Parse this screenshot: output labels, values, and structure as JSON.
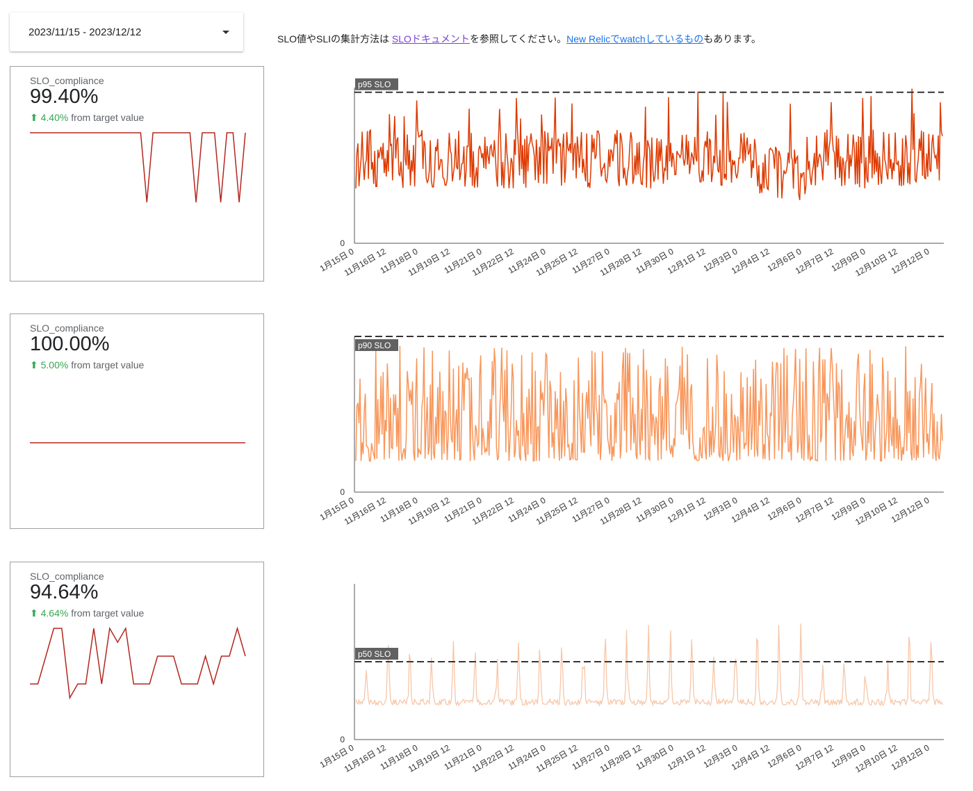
{
  "date_range": {
    "label": "2023/11/15 - 2023/12/12"
  },
  "notice": {
    "prefix": "SLO値やSLIの集計方法は ",
    "link1": "SLOドキュメント",
    "middle": "を参照してください。",
    "link2": "New Relicでwatchしているもの",
    "suffix": "もあります。"
  },
  "colors": {
    "p95": "#dd3a00",
    "p90": "#f8965a",
    "p50": "#f7c6a8",
    "spark": "#b3261e",
    "up": "#34a853"
  },
  "scorecards": [
    {
      "label": "SLO_compliance",
      "value": "99.40%",
      "arrow": "⬆",
      "delta_value": "4.40%",
      "delta_text": " from target value",
      "sparkline": [
        99.9,
        99.9,
        99.9,
        99.9,
        99.9,
        99.9,
        99.9,
        99.9,
        99.9,
        99.9,
        99.9,
        99.9,
        99.9,
        99.9,
        99.9,
        99.9,
        99.9,
        99.9,
        99.9,
        98.5,
        99.9,
        99.9,
        99.9,
        99.9,
        99.9,
        99.9,
        99.9,
        98.5,
        99.9,
        99.9,
        99.9,
        98.5,
        99.9,
        99.9,
        98.5,
        99.9
      ]
    },
    {
      "label": "SLO_compliance",
      "value": "100.00%",
      "arrow": "⬆",
      "delta_value": "5.00%",
      "delta_text": " from target value",
      "sparkline": [
        100,
        100,
        100,
        100,
        100,
        100,
        100,
        100,
        100,
        100,
        100,
        100,
        100,
        100,
        100,
        100,
        100,
        100,
        100,
        100,
        100,
        100,
        100,
        100,
        100,
        100,
        100,
        100
      ]
    },
    {
      "label": "SLO_compliance",
      "value": "94.64%",
      "arrow": "⬆",
      "delta_value": "4.64%",
      "delta_text": " from target value",
      "sparkline": [
        2,
        2,
        4,
        6,
        6,
        1,
        2,
        2,
        6,
        2,
        6,
        5,
        6,
        2,
        2,
        2,
        4,
        4,
        4,
        2,
        2,
        2,
        4,
        2,
        4,
        4,
        6,
        4
      ]
    }
  ],
  "chart_data": [
    {
      "type": "line",
      "series": [
        {
          "name": "p95 SLO"
        }
      ],
      "slo_label": "p95 SLO",
      "y_zero_label": "0",
      "ylim": [
        0,
        1
      ],
      "slo_value": 0.97,
      "baseline": 0.54,
      "amplitude": 0.38,
      "spike_max": 1.0,
      "x_ticks": [
        "1月15日 0",
        "11月16日 12",
        "11月18日 0",
        "11月19日 12",
        "11月21日 0",
        "11月22日 12",
        "11月24日 0",
        "11月25日 12",
        "11月27日 0",
        "11月28日 12",
        "11月30日 0",
        "12月1日 12",
        "12月3日 0",
        "12月4日 12",
        "12月6日 0",
        "12月7日 12",
        "12月9日 0",
        "12月10日 12",
        "12月12日 0"
      ]
    },
    {
      "type": "line",
      "series": [
        {
          "name": "p90 SLO"
        }
      ],
      "slo_label": "p90 SLO",
      "y_zero_label": "0",
      "ylim": [
        0,
        1
      ],
      "slo_value": 1.0,
      "baseline": 0.2,
      "amplitude": 0.75,
      "spike_max": 0.92,
      "x_ticks": [
        "1月15日 0",
        "11月16日 12",
        "11月18日 0",
        "11月19日 12",
        "11月21日 0",
        "11月22日 12",
        "11月24日 0",
        "11月25日 12",
        "11月27日 0",
        "11月28日 12",
        "11月30日 0",
        "12月1日 12",
        "12月3日 0",
        "12月4日 12",
        "12月6日 0",
        "12月7日 12",
        "12月9日 0",
        "12月10日 12",
        "12月12日 0"
      ]
    },
    {
      "type": "line",
      "series": [
        {
          "name": "p50 SLO"
        }
      ],
      "slo_label": "p50 SLO",
      "y_zero_label": "0",
      "ylim": [
        0,
        1
      ],
      "slo_value": 0.5,
      "baseline": 0.24,
      "amplitude": 0.04,
      "spike_max": 0.79,
      "x_ticks": [
        "1月15日 0",
        "11月16日 12",
        "11月18日 0",
        "11月19日 12",
        "11月21日 0",
        "11月22日 12",
        "11月24日 0",
        "11月25日 12",
        "11月27日 0",
        "11月28日 12",
        "11月30日 0",
        "12月1日 12",
        "12月3日 0",
        "12月4日 12",
        "12月6日 0",
        "12月7日 12",
        "12月9日 0",
        "12月10日 12",
        "12月12日 0"
      ]
    }
  ]
}
